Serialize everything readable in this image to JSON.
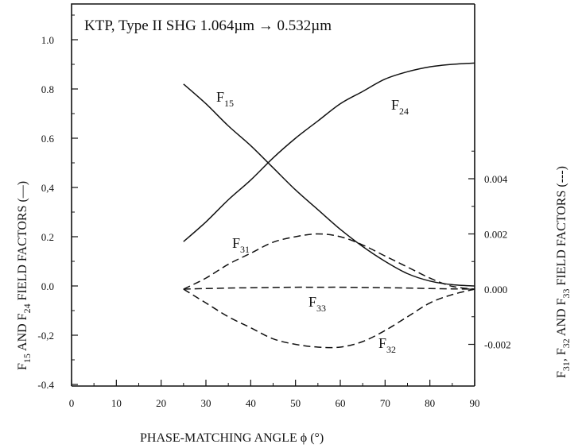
{
  "chart_data": {
    "type": "line",
    "title": "KTP, Type II SHG 1.064µm → 0.532µm",
    "xlabel": "PHASE-MATCHING ANGLE ϕ    (°)",
    "ylabel_left": {
      "main": "F",
      "s1": "15",
      "mid": " AND F",
      "s2": "24",
      "tail": " FIELD FACTORS (—)"
    },
    "ylabel_right": {
      "p1": "F",
      "s1": "31",
      "p2": ", F",
      "s2": "32",
      "p3": " AND F",
      "s3": "33",
      "tail": " FIELD FACTORS (---)"
    },
    "xlim": [
      0,
      90
    ],
    "ylim_left": [
      -0.4,
      1.15
    ],
    "ylim_right": [
      -0.0025,
      0.006
    ],
    "x_ticks": [
      "0",
      "10",
      "20",
      "30",
      "40",
      "50",
      "60",
      "70",
      "80",
      "90"
    ],
    "y_ticks_left": [
      "-0.4",
      "-0,2",
      "0.0",
      "0.2",
      "0,4",
      "0.6",
      "0.8",
      "1.0"
    ],
    "y_ticks_right": [
      "-0.002",
      "0.000",
      "0.002",
      "0.004"
    ],
    "series": [
      {
        "name": "F15",
        "label_main": "F",
        "label_sub": "15",
        "axis": "left",
        "style": "solid",
        "x": [
          25,
          30,
          35,
          40,
          45,
          50,
          55,
          60,
          65,
          70,
          75,
          80,
          85,
          90
        ],
        "y": [
          0.82,
          0.74,
          0.65,
          0.57,
          0.48,
          0.39,
          0.31,
          0.23,
          0.16,
          0.1,
          0.05,
          0.02,
          0.005,
          0.0
        ]
      },
      {
        "name": "F24",
        "label_main": "F",
        "label_sub": "24",
        "axis": "left",
        "style": "solid",
        "x": [
          25,
          30,
          35,
          40,
          45,
          50,
          55,
          60,
          65,
          70,
          75,
          80,
          85,
          90
        ],
        "y": [
          0.18,
          0.26,
          0.35,
          0.43,
          0.52,
          0.6,
          0.67,
          0.74,
          0.79,
          0.84,
          0.87,
          0.89,
          0.9,
          0.905
        ]
      },
      {
        "name": "F31",
        "label_main": "F",
        "label_sub": "31",
        "axis": "right",
        "style": "dashed",
        "x": [
          25,
          30,
          35,
          40,
          45,
          50,
          55,
          60,
          65,
          70,
          75,
          80,
          85,
          90
        ],
        "y": [
          0.0,
          0.0004,
          0.0009,
          0.0013,
          0.0017,
          0.0019,
          0.002,
          0.0019,
          0.0016,
          0.0012,
          0.0008,
          0.0004,
          0.0001,
          0.0
        ]
      },
      {
        "name": "F32",
        "label_main": "F",
        "label_sub": "32",
        "axis": "right",
        "style": "dashed",
        "x": [
          25,
          30,
          35,
          40,
          45,
          50,
          55,
          60,
          65,
          70,
          75,
          80,
          85,
          90
        ],
        "y": [
          0.0,
          -0.0005,
          -0.001,
          -0.0014,
          -0.0018,
          -0.002,
          -0.0021,
          -0.0021,
          -0.0019,
          -0.0015,
          -0.001,
          -0.0005,
          -0.0002,
          0.0
        ]
      },
      {
        "name": "F33",
        "label_main": "F",
        "label_sub": "33",
        "axis": "right",
        "style": "dashed",
        "x": [
          25,
          30,
          35,
          40,
          45,
          50,
          55,
          60,
          65,
          70,
          75,
          80,
          85,
          90
        ],
        "y": [
          0.0,
          2e-05,
          4e-05,
          5e-05,
          6e-05,
          7e-05,
          7e-05,
          7e-05,
          6e-05,
          5e-05,
          4e-05,
          2e-05,
          1e-05,
          0.0
        ]
      }
    ],
    "grid": false,
    "legend": "none"
  }
}
